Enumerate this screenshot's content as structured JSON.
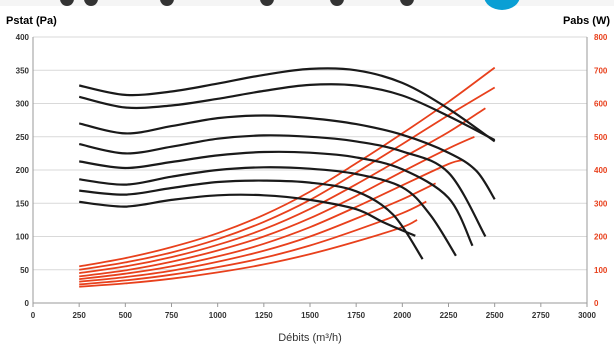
{
  "colors": {
    "pressure": "#1a1a1a",
    "power": "#e8401c",
    "grid": "#d9d9d9",
    "axis": "#9a9a9a"
  },
  "chart_data": {
    "type": "line",
    "title": "",
    "ylabel": "Pstat (Pa)",
    "y2label": "Pabs (W)",
    "xlabel": "Débits (m³/h)",
    "xlim": [
      0,
      3000
    ],
    "ylim": [
      0,
      400
    ],
    "y2lim": [
      0,
      800
    ],
    "xticks": [
      "0",
      "250",
      "500",
      "750",
      "1000",
      "1250",
      "1500",
      "1750",
      "2000",
      "2250",
      "2500",
      "2750",
      "3000"
    ],
    "yticks": [
      "0",
      "50",
      "100",
      "150",
      "200",
      "250",
      "300",
      "350",
      "400"
    ],
    "y2ticks": [
      "0",
      "100",
      "200",
      "300",
      "400",
      "500",
      "600",
      "700",
      "800"
    ],
    "grid": true,
    "pressure_series": [
      {
        "x": [
          250,
          500,
          750,
          1000,
          1250,
          1500,
          1750,
          2000,
          2250,
          2500
        ],
        "y": [
          327,
          313,
          318,
          330,
          343,
          352,
          350,
          331,
          292,
          243
        ]
      },
      {
        "x": [
          250,
          500,
          750,
          1000,
          1250,
          1500,
          1750,
          2000,
          2250,
          2500
        ],
        "y": [
          310,
          294,
          297,
          307,
          319,
          328,
          327,
          312,
          281,
          245
        ]
      },
      {
        "x": [
          250,
          500,
          750,
          1000,
          1250,
          1500,
          1750,
          2000,
          2250,
          2400,
          2500
        ],
        "y": [
          270,
          255,
          266,
          278,
          282,
          278,
          269,
          253,
          226,
          199,
          156
        ]
      },
      {
        "x": [
          250,
          500,
          750,
          1000,
          1250,
          1500,
          1750,
          2000,
          2250,
          2450
        ],
        "y": [
          239,
          225,
          235,
          247,
          252,
          250,
          243,
          228,
          196,
          100
        ]
      },
      {
        "x": [
          250,
          500,
          750,
          1000,
          1250,
          1500,
          1750,
          2000,
          2250,
          2380
        ],
        "y": [
          213,
          203,
          212,
          222,
          227,
          226,
          219,
          201,
          158,
          86
        ]
      },
      {
        "x": [
          250,
          500,
          750,
          1000,
          1250,
          1500,
          1750,
          2000,
          2150,
          2290
        ],
        "y": [
          186,
          178,
          190,
          200,
          204,
          202,
          194,
          174,
          133,
          71
        ]
      },
      {
        "x": [
          250,
          500,
          750,
          1000,
          1250,
          1500,
          1750,
          1950,
          2110
        ],
        "y": [
          169,
          163,
          173,
          182,
          184,
          181,
          168,
          133,
          66
        ]
      },
      {
        "x": [
          250,
          500,
          750,
          1000,
          1250,
          1500,
          1750,
          1900,
          2070
        ],
        "y": [
          152,
          145,
          155,
          162,
          162,
          155,
          141,
          121,
          101
        ]
      }
    ],
    "power_series": [
      {
        "x": [
          250,
          500,
          750,
          1000,
          1250,
          1500,
          1750,
          2000,
          2250,
          2500
        ],
        "y": [
          110,
          135,
          168,
          210,
          265,
          335,
          420,
          510,
          605,
          708
        ]
      },
      {
        "x": [
          250,
          500,
          750,
          1000,
          1250,
          1500,
          1750,
          2000,
          2250,
          2500
        ],
        "y": [
          100,
          122,
          152,
          192,
          244,
          310,
          392,
          478,
          565,
          648
        ]
      },
      {
        "x": [
          250,
          500,
          750,
          1000,
          1250,
          1500,
          1750,
          2000,
          2250,
          2450
        ],
        "y": [
          90,
          110,
          138,
          175,
          222,
          283,
          357,
          436,
          514,
          586
        ]
      },
      {
        "x": [
          250,
          500,
          750,
          1000,
          1250,
          1500,
          1750,
          2000,
          2250,
          2390
        ],
        "y": [
          80,
          98,
          124,
          158,
          200,
          255,
          322,
          395,
          465,
          500
        ]
      },
      {
        "x": [
          250,
          500,
          750,
          1000,
          1250,
          1500,
          1750,
          2000,
          2250,
          2330
        ],
        "y": [
          72,
          88,
          110,
          140,
          178,
          228,
          289,
          354,
          418,
          430
        ]
      },
      {
        "x": [
          250,
          500,
          750,
          1000,
          1250,
          1500,
          1750,
          2000,
          2180
        ],
        "y": [
          64,
          78,
          97,
          124,
          157,
          200,
          254,
          312,
          360
        ]
      },
      {
        "x": [
          250,
          500,
          750,
          1000,
          1250,
          1500,
          1750,
          2000,
          2130
        ],
        "y": [
          56,
          68,
          85,
          108,
          136,
          173,
          219,
          270,
          305
        ]
      },
      {
        "x": [
          250,
          500,
          750,
          1000,
          1250,
          1500,
          1750,
          2000,
          2080
        ],
        "y": [
          49,
          59,
          73,
          92,
          116,
          147,
          185,
          228,
          250
        ]
      }
    ]
  }
}
